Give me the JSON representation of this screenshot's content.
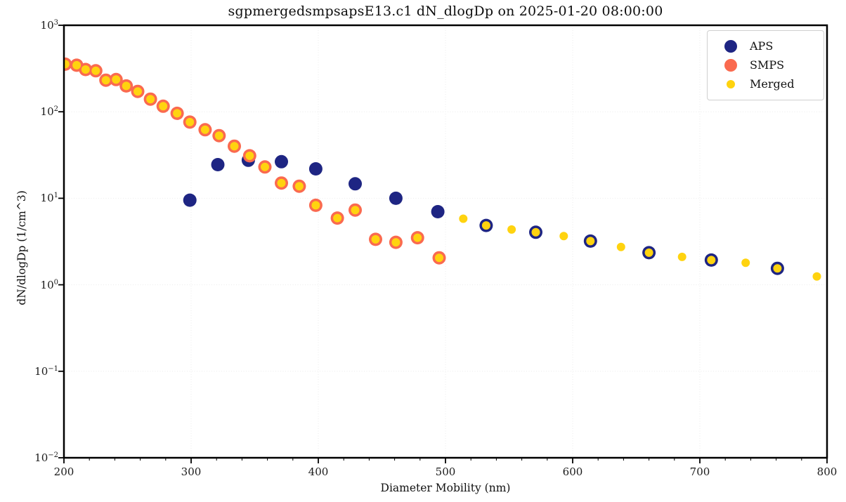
{
  "chart_data": {
    "type": "scatter",
    "title": "sgpmergedsmpsapsE13.c1 dN_dlogDp on 2025-01-20 08:00:00",
    "xlabel": "Diameter Mobility (nm)",
    "ylabel": "dN/dlogDp (1/cm^3)",
    "x_axis": {
      "min": 200,
      "max": 800,
      "ticks": [
        200,
        300,
        400,
        500,
        600,
        700,
        800
      ],
      "minor_tick_step": 20,
      "scale": "linear"
    },
    "y_axis": {
      "scale": "log",
      "min_exp": -2,
      "max_exp": 3,
      "tick_exponents": [
        3,
        2,
        1,
        0,
        -1,
        -2
      ]
    },
    "grid": true,
    "legend_position": "upper right",
    "series": [
      {
        "name": "APS",
        "color": "#1e2583",
        "marker_radius": 9.5,
        "legend_dot_radius": 9,
        "points": [
          [
            299,
            9.5
          ],
          [
            321,
            24.5
          ],
          [
            345,
            27.5
          ],
          [
            371,
            26.5
          ],
          [
            398,
            21.9
          ],
          [
            429,
            14.7
          ],
          [
            461,
            10.0
          ],
          [
            494,
            7.0
          ],
          [
            532,
            4.85
          ],
          [
            571,
            4.05
          ],
          [
            614,
            3.2
          ],
          [
            660,
            2.35
          ],
          [
            709,
            1.93
          ],
          [
            761,
            1.55
          ]
        ]
      },
      {
        "name": "SMPS",
        "color": "#fa6a4f",
        "marker_radius": 9.5,
        "legend_dot_radius": 9,
        "points": [
          [
            201,
            355
          ],
          [
            210,
            345
          ],
          [
            217,
            308
          ],
          [
            225,
            298
          ],
          [
            233,
            232
          ],
          [
            241,
            236
          ],
          [
            249,
            199
          ],
          [
            258,
            172
          ],
          [
            268,
            140
          ],
          [
            278,
            116
          ],
          [
            289,
            96
          ],
          [
            299,
            76
          ],
          [
            311,
            62
          ],
          [
            322,
            53
          ],
          [
            334,
            40
          ],
          [
            346,
            31
          ],
          [
            358,
            23
          ],
          [
            371,
            15
          ],
          [
            385,
            13.8
          ],
          [
            398,
            8.3
          ],
          [
            415,
            5.9
          ],
          [
            429,
            7.3
          ],
          [
            445,
            3.35
          ],
          [
            461,
            3.1
          ],
          [
            478,
            3.5
          ],
          [
            495,
            2.05
          ]
        ]
      },
      {
        "name": "Merged",
        "color": "#ffd30f",
        "marker_radius": 6,
        "legend_dot_radius": 6,
        "points": [
          [
            201,
            355
          ],
          [
            210,
            345
          ],
          [
            217,
            308
          ],
          [
            225,
            298
          ],
          [
            233,
            232
          ],
          [
            241,
            236
          ],
          [
            249,
            199
          ],
          [
            258,
            172
          ],
          [
            268,
            140
          ],
          [
            278,
            116
          ],
          [
            289,
            96
          ],
          [
            299,
            76
          ],
          [
            311,
            62
          ],
          [
            322,
            53
          ],
          [
            334,
            40
          ],
          [
            346,
            31
          ],
          [
            358,
            23
          ],
          [
            371,
            15
          ],
          [
            385,
            13.8
          ],
          [
            398,
            8.3
          ],
          [
            415,
            5.9
          ],
          [
            429,
            7.3
          ],
          [
            445,
            3.35
          ],
          [
            461,
            3.1
          ],
          [
            478,
            3.5
          ],
          [
            495,
            2.05
          ],
          [
            514,
            5.8
          ],
          [
            532,
            4.85
          ],
          [
            552,
            4.35
          ],
          [
            571,
            4.05
          ],
          [
            593,
            3.65
          ],
          [
            614,
            3.2
          ],
          [
            638,
            2.74
          ],
          [
            660,
            2.35
          ],
          [
            686,
            2.1
          ],
          [
            709,
            1.93
          ],
          [
            736,
            1.8
          ],
          [
            761,
            1.55
          ],
          [
            792,
            1.25
          ]
        ]
      }
    ],
    "style": {
      "grid_color": "#ebebeb",
      "spine_color": "#000000",
      "background": "#ffffff"
    }
  }
}
